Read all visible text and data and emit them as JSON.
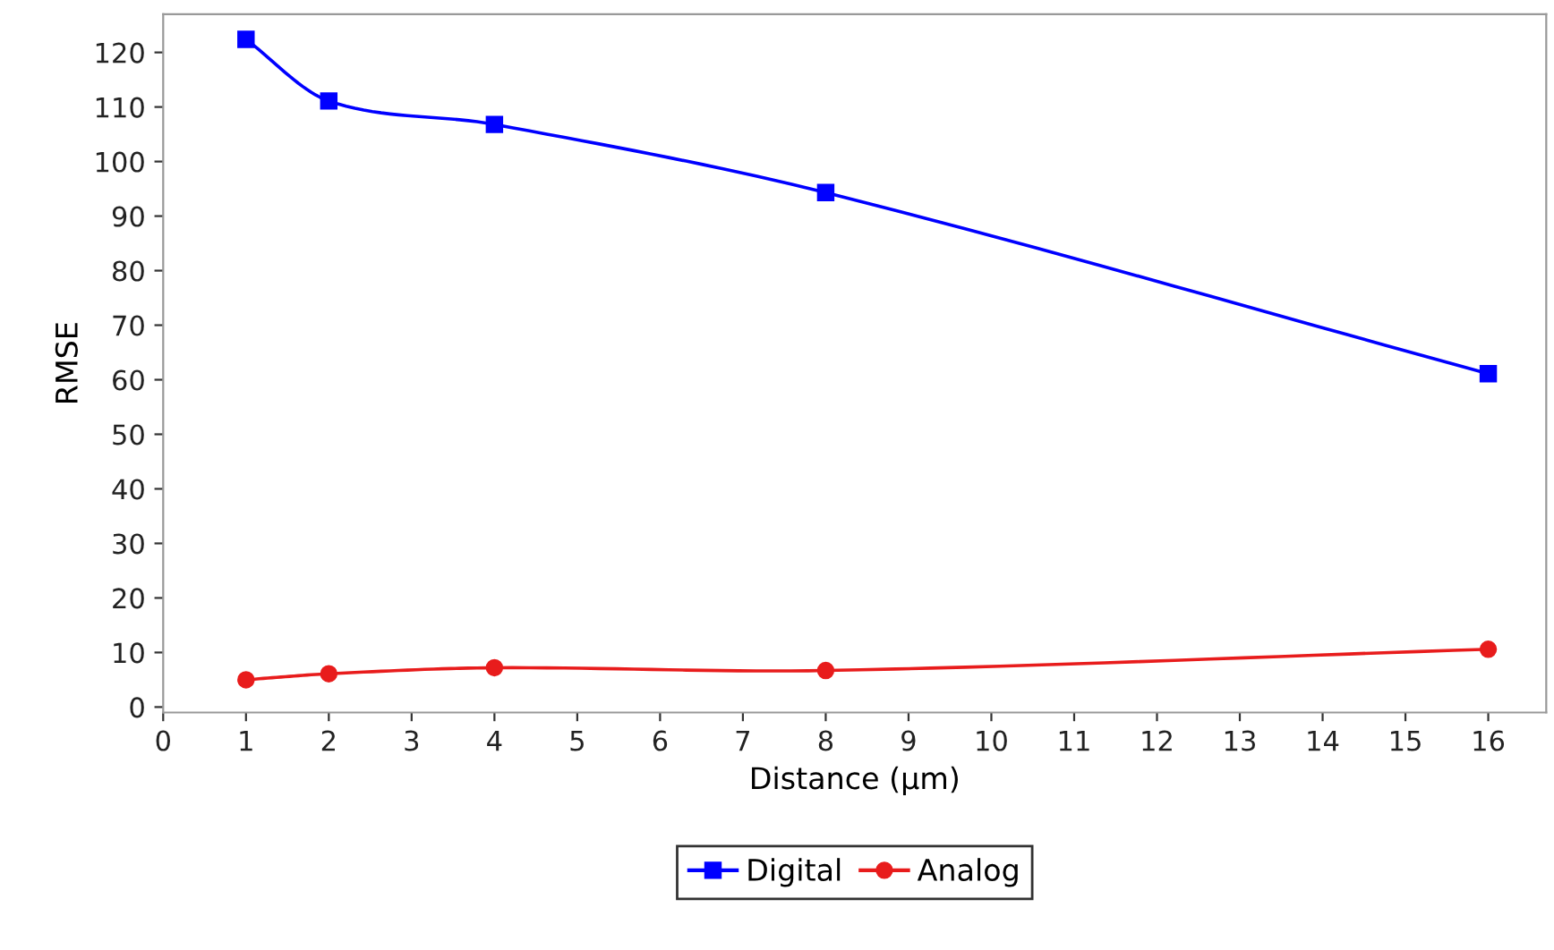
{
  "chart_data": {
    "type": "line",
    "xlabel": "Distance (µm)",
    "ylabel": "RMSE",
    "x": [
      1,
      2,
      4,
      8,
      16
    ],
    "series": [
      {
        "name": "Digital",
        "color": "#0000ff",
        "marker": "square",
        "values": [
          122.4,
          111.1,
          106.8,
          94.3,
          61.1
        ]
      },
      {
        "name": "Analog",
        "color": "#e81c1c",
        "marker": "circle",
        "values": [
          5.0,
          6.1,
          7.2,
          6.7,
          10.6
        ]
      }
    ],
    "xlim": [
      0,
      16.7
    ],
    "xticks": [
      0,
      1,
      2,
      3,
      4,
      5,
      6,
      7,
      8,
      9,
      10,
      11,
      12,
      13,
      14,
      15,
      16
    ],
    "ylim": [
      -1,
      127
    ],
    "yticks": [
      0,
      10,
      20,
      30,
      40,
      50,
      60,
      70,
      80,
      90,
      100,
      110,
      120
    ],
    "grid": false,
    "legend": "bottom",
    "line_style": "solid"
  }
}
